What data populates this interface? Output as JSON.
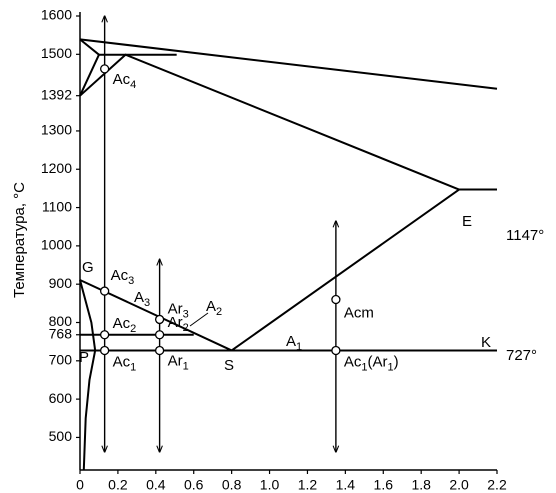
{
  "chart_data": {
    "type": "phase-diagram",
    "ylabel": "Температура, °C",
    "xlim": [
      0,
      2.2
    ],
    "ylim": [
      415,
      1600
    ],
    "xticks": [
      0,
      0.2,
      0.4,
      0.6,
      0.8,
      {
        "value": 1,
        "label": "1.0"
      },
      1.2,
      1.4,
      1.6,
      1.8,
      {
        "value": 2,
        "label": "2.0"
      },
      2.2
    ],
    "yticks": [
      500,
      600,
      700,
      768,
      800,
      900,
      1000,
      1100,
      1200,
      1300,
      1392,
      1500,
      1600
    ],
    "lines": [
      {
        "x": [
          0,
          2.2
        ],
        "y": [
          1539,
          1410
        ]
      },
      {
        "x": [
          0,
          0.1,
          0
        ],
        "y": [
          1539,
          1499,
          1392
        ]
      },
      {
        "x": [
          0,
          0.24,
          2.0,
          2.2
        ],
        "y": [
          1392,
          1499,
          1147,
          1147
        ]
      },
      {
        "x": [
          0.1,
          0.51
        ],
        "y": [
          1499,
          1499
        ]
      },
      {
        "x": [
          0,
          0.8,
          2.0
        ],
        "y": [
          911,
          727,
          1147
        ]
      },
      {
        "x": [
          0,
          2.2
        ],
        "y": [
          727,
          727
        ]
      },
      {
        "x": [
          0,
          0.6
        ],
        "y": [
          768,
          768
        ]
      },
      {
        "x": [
          0,
          0.06,
          0.08,
          0.05,
          0.03,
          0.02
        ],
        "y": [
          911,
          800,
          727,
          650,
          550,
          415
        ]
      }
    ],
    "arrows": [
      {
        "x": 0.13,
        "y": [
          462,
          1600
        ]
      },
      {
        "x": 0.42,
        "y": [
          462,
          965
        ]
      },
      {
        "x": 1.35,
        "y": [
          462,
          1065
        ]
      }
    ],
    "points": [
      {
        "x": 0.13,
        "y": 1462,
        "label": [
          "Ac",
          "4"
        ]
      },
      {
        "x": 0.13,
        "y": 882,
        "label": [
          "Ac",
          "3"
        ]
      },
      {
        "x": 0.13,
        "y": 768,
        "label": [
          "Ac",
          "2"
        ]
      },
      {
        "x": 0.13,
        "y": 727,
        "label": [
          "Ac",
          "1"
        ]
      },
      {
        "x": 0.42,
        "y": 808,
        "label": [
          "Ar",
          "3"
        ]
      },
      {
        "x": 0.42,
        "y": 768,
        "label": [
          "Ar",
          "2"
        ]
      },
      {
        "x": 0.42,
        "y": 727,
        "label": [
          "Ar",
          "1"
        ]
      },
      {
        "x": 1.35,
        "y": 860,
        "label": [
          "Acm"
        ]
      },
      {
        "x": 1.35,
        "y": 727,
        "label": [
          "Ac",
          "1",
          "(Ar",
          "1",
          ")"
        ]
      }
    ],
    "annotations": [
      [
        "G"
      ],
      [
        "E"
      ],
      [
        "S"
      ],
      [
        "P"
      ],
      [
        "K"
      ],
      [
        "A",
        "1"
      ],
      [
        "A",
        "2"
      ],
      [
        "A",
        "3"
      ],
      [
        "1147°"
      ],
      [
        "727°"
      ]
    ]
  }
}
